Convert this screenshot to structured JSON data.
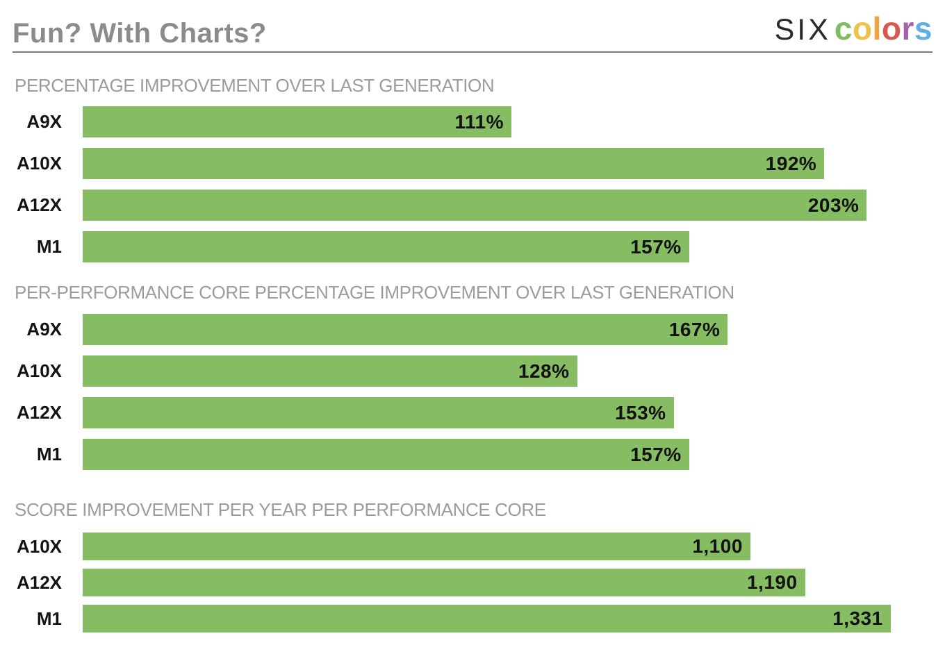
{
  "header": {
    "title": "Fun? With Charts?",
    "logo": {
      "prefix": "six",
      "word_letters": [
        {
          "ch": "c",
          "color": "#7fbc5f"
        },
        {
          "ch": "o",
          "color": "#eec14f"
        },
        {
          "ch": "l",
          "color": "#efa33e"
        },
        {
          "ch": "o",
          "color": "#d9594f"
        },
        {
          "ch": "r",
          "color": "#a263a8"
        },
        {
          "ch": "s",
          "color": "#62b0e3"
        }
      ]
    }
  },
  "colors": {
    "bar": "#86bd63",
    "page_title": "#8b8b8b",
    "section_title": "#9c9c9c",
    "rule": "#7a7a7a",
    "text": "#121212"
  },
  "chart_data": [
    {
      "type": "bar",
      "orientation": "horizontal",
      "title": "PERCENTAGE IMPROVEMENT OVER LAST GENERATION",
      "categories": [
        "A9X",
        "A10X",
        "A12X",
        "M1"
      ],
      "values": [
        111,
        192,
        203,
        157
      ],
      "value_labels": [
        "111%",
        "192%",
        "203%",
        "157%"
      ],
      "unit": "%",
      "xlim": [
        0,
        220
      ],
      "grid": false,
      "legend": "none",
      "bar_color": "#86bd63"
    },
    {
      "type": "bar",
      "orientation": "horizontal",
      "title": "PER-PERFORMANCE CORE PERCENTAGE IMPROVEMENT OVER LAST GENERATION",
      "categories": [
        "A9X",
        "A10X",
        "A12X",
        "M1"
      ],
      "values": [
        167,
        128,
        153,
        157
      ],
      "value_labels": [
        "167%",
        "128%",
        "153%",
        "157%"
      ],
      "unit": "%",
      "xlim": [
        0,
        220
      ],
      "grid": false,
      "legend": "none",
      "bar_color": "#86bd63"
    },
    {
      "type": "bar",
      "orientation": "horizontal",
      "title": "SCORE IMPROVEMENT PER YEAR PER PERFORMANCE CORE",
      "categories": [
        "A10X",
        "A12X",
        "M1"
      ],
      "values": [
        1100,
        1190,
        1331
      ],
      "value_labels": [
        "1,100",
        "1,190",
        "1,331"
      ],
      "unit": "",
      "xlim": [
        0,
        1400
      ],
      "grid": false,
      "legend": "none",
      "bar_color": "#86bd63"
    }
  ]
}
